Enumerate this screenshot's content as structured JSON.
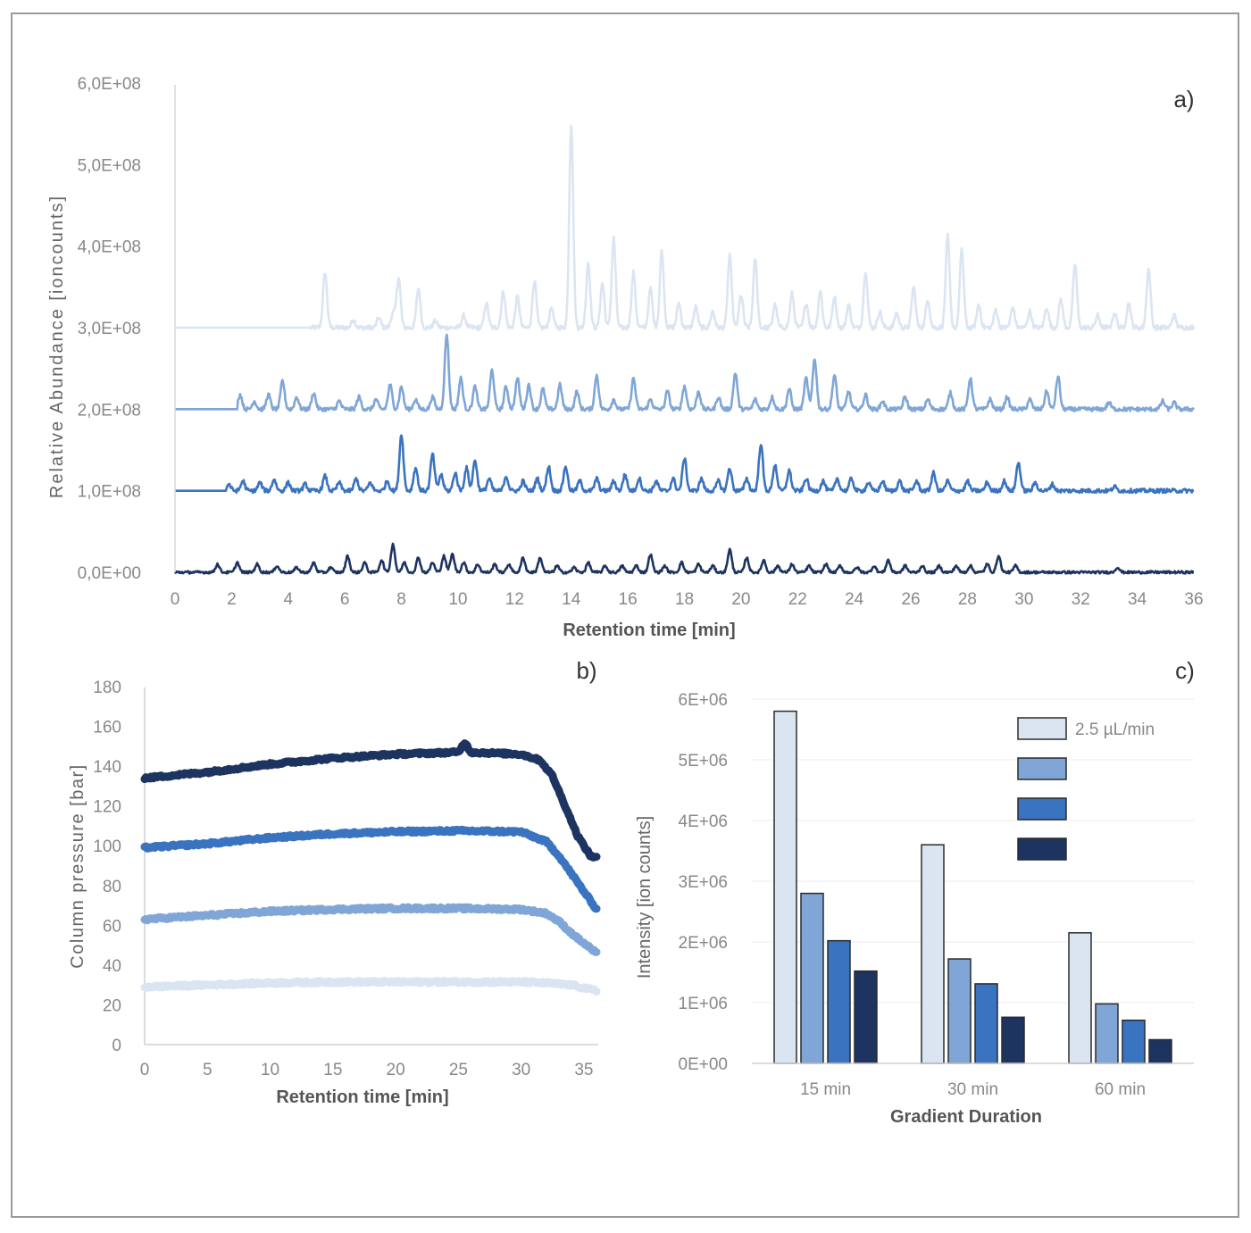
{
  "colors": {
    "c1": "#dbe5f2",
    "c2": "#7fa6d6",
    "c3": "#3a73bf",
    "c4": "#1d3461",
    "axis": "#d0d0d0",
    "bar_outline": "#2b2b2b"
  },
  "chart_data": [
    {
      "id": "a",
      "type": "line",
      "panel_label": "a)",
      "xlabel": "Retention time [min]",
      "ylabel": "Relative Abundance [ioncounts]",
      "xlim": [
        0,
        36
      ],
      "ylim": [
        0,
        600000000
      ],
      "x_ticks": [
        "0",
        "2",
        "4",
        "6",
        "8",
        "10",
        "12",
        "14",
        "16",
        "18",
        "20",
        "22",
        "24",
        "26",
        "28",
        "30",
        "32",
        "34",
        "36"
      ],
      "y_ticks": [
        "0,0E+00",
        "1,0E+08",
        "2,0E+08",
        "3,0E+08",
        "4,0E+08",
        "5,0E+08",
        "6,0E+08"
      ],
      "grid": false,
      "series": [
        {
          "color_key": "c1",
          "baseline": 300000000,
          "start": 4.8,
          "noise": 6000000,
          "peaks": [
            [
              5.3,
              68
            ],
            [
              6.3,
              10
            ],
            [
              7.2,
              12
            ],
            [
              7.7,
              18
            ],
            [
              7.9,
              62
            ],
            [
              8.6,
              48
            ],
            [
              9.2,
              8
            ],
            [
              10.2,
              15
            ],
            [
              11.0,
              30
            ],
            [
              11.6,
              45
            ],
            [
              12.1,
              38
            ],
            [
              12.7,
              58
            ],
            [
              13.3,
              25
            ],
            [
              14.0,
              250
            ],
            [
              14.6,
              80
            ],
            [
              15.1,
              55
            ],
            [
              15.5,
              110
            ],
            [
              16.2,
              68
            ],
            [
              16.8,
              48
            ],
            [
              17.2,
              95
            ],
            [
              17.8,
              30
            ],
            [
              18.4,
              25
            ],
            [
              19.0,
              20
            ],
            [
              19.6,
              88
            ],
            [
              20.0,
              40
            ],
            [
              20.5,
              85
            ],
            [
              21.2,
              28
            ],
            [
              21.8,
              42
            ],
            [
              22.3,
              30
            ],
            [
              22.8,
              45
            ],
            [
              23.3,
              38
            ],
            [
              23.8,
              28
            ],
            [
              24.4,
              70
            ],
            [
              24.9,
              20
            ],
            [
              25.5,
              18
            ],
            [
              26.1,
              50
            ],
            [
              26.6,
              35
            ],
            [
              27.3,
              112
            ],
            [
              27.8,
              95
            ],
            [
              28.4,
              28
            ],
            [
              29.0,
              22
            ],
            [
              29.6,
              25
            ],
            [
              30.2,
              20
            ],
            [
              30.8,
              25
            ],
            [
              31.3,
              35
            ],
            [
              31.8,
              78
            ],
            [
              32.6,
              15
            ],
            [
              33.2,
              18
            ],
            [
              33.7,
              30
            ],
            [
              34.4,
              72
            ],
            [
              35.3,
              15
            ]
          ]
        },
        {
          "color_key": "c2",
          "baseline": 200000000,
          "start": 2.2,
          "noise": 5000000,
          "peaks": [
            [
              2.3,
              18
            ],
            [
              2.8,
              10
            ],
            [
              3.3,
              18
            ],
            [
              3.8,
              35
            ],
            [
              4.3,
              15
            ],
            [
              4.9,
              20
            ],
            [
              5.8,
              10
            ],
            [
              6.5,
              15
            ],
            [
              7.1,
              12
            ],
            [
              7.6,
              30
            ],
            [
              8.0,
              28
            ],
            [
              8.5,
              12
            ],
            [
              9.1,
              15
            ],
            [
              9.6,
              92
            ],
            [
              10.1,
              38
            ],
            [
              10.6,
              28
            ],
            [
              11.2,
              48
            ],
            [
              11.7,
              28
            ],
            [
              12.1,
              38
            ],
            [
              12.5,
              30
            ],
            [
              13.0,
              25
            ],
            [
              13.6,
              30
            ],
            [
              14.2,
              22
            ],
            [
              14.9,
              42
            ],
            [
              15.5,
              12
            ],
            [
              16.2,
              38
            ],
            [
              16.8,
              12
            ],
            [
              17.4,
              22
            ],
            [
              18.0,
              28
            ],
            [
              18.5,
              22
            ],
            [
              19.2,
              15
            ],
            [
              19.8,
              45
            ],
            [
              20.5,
              12
            ],
            [
              21.1,
              15
            ],
            [
              21.7,
              25
            ],
            [
              22.3,
              38
            ],
            [
              22.6,
              62
            ],
            [
              23.3,
              42
            ],
            [
              23.8,
              22
            ],
            [
              24.4,
              18
            ],
            [
              25.0,
              10
            ],
            [
              25.8,
              15
            ],
            [
              26.6,
              12
            ],
            [
              27.4,
              20
            ],
            [
              28.1,
              38
            ],
            [
              28.8,
              12
            ],
            [
              29.4,
              15
            ],
            [
              30.2,
              12
            ],
            [
              30.8,
              22
            ],
            [
              31.2,
              40
            ],
            [
              33.0,
              8
            ],
            [
              34.9,
              10
            ],
            [
              35.3,
              8
            ]
          ]
        },
        {
          "color_key": "c3",
          "baseline": 100000000,
          "start": 1.8,
          "noise": 5000000,
          "peaks": [
            [
              1.9,
              8
            ],
            [
              2.4,
              12
            ],
            [
              3.0,
              10
            ],
            [
              3.5,
              14
            ],
            [
              4.0,
              10
            ],
            [
              4.6,
              8
            ],
            [
              5.3,
              18
            ],
            [
              5.8,
              10
            ],
            [
              6.4,
              15
            ],
            [
              6.9,
              10
            ],
            [
              7.5,
              12
            ],
            [
              8.0,
              70
            ],
            [
              8.5,
              28
            ],
            [
              9.1,
              45
            ],
            [
              9.4,
              20
            ],
            [
              9.9,
              22
            ],
            [
              10.3,
              28
            ],
            [
              10.6,
              38
            ],
            [
              11.1,
              15
            ],
            [
              11.7,
              18
            ],
            [
              12.3,
              12
            ],
            [
              12.8,
              15
            ],
            [
              13.2,
              30
            ],
            [
              13.8,
              30
            ],
            [
              14.3,
              12
            ],
            [
              14.9,
              15
            ],
            [
              15.5,
              12
            ],
            [
              15.9,
              20
            ],
            [
              16.4,
              15
            ],
            [
              17.0,
              12
            ],
            [
              17.6,
              15
            ],
            [
              18.0,
              40
            ],
            [
              18.6,
              15
            ],
            [
              19.2,
              12
            ],
            [
              19.6,
              28
            ],
            [
              20.2,
              15
            ],
            [
              20.7,
              58
            ],
            [
              21.2,
              32
            ],
            [
              21.7,
              25
            ],
            [
              22.3,
              15
            ],
            [
              22.9,
              12
            ],
            [
              23.4,
              15
            ],
            [
              23.9,
              15
            ],
            [
              24.5,
              10
            ],
            [
              25.0,
              12
            ],
            [
              25.6,
              12
            ],
            [
              26.2,
              12
            ],
            [
              26.8,
              22
            ],
            [
              27.3,
              12
            ],
            [
              28.0,
              12
            ],
            [
              28.7,
              10
            ],
            [
              29.3,
              12
            ],
            [
              29.8,
              35
            ],
            [
              30.4,
              10
            ],
            [
              31.0,
              8
            ],
            [
              33.2,
              5
            ]
          ]
        },
        {
          "color_key": "c4",
          "baseline": 0,
          "start": 0.0,
          "noise": 3000000,
          "peaks": [
            [
              1.5,
              10
            ],
            [
              2.2,
              12
            ],
            [
              2.9,
              10
            ],
            [
              3.6,
              8
            ],
            [
              4.3,
              6
            ],
            [
              4.9,
              12
            ],
            [
              5.5,
              6
            ],
            [
              6.1,
              20
            ],
            [
              6.7,
              12
            ],
            [
              7.3,
              15
            ],
            [
              7.7,
              35
            ],
            [
              8.1,
              12
            ],
            [
              8.6,
              18
            ],
            [
              9.1,
              12
            ],
            [
              9.5,
              20
            ],
            [
              9.8,
              22
            ],
            [
              10.2,
              12
            ],
            [
              10.7,
              10
            ],
            [
              11.3,
              10
            ],
            [
              11.8,
              10
            ],
            [
              12.3,
              18
            ],
            [
              12.9,
              18
            ],
            [
              13.5,
              8
            ],
            [
              14.1,
              6
            ],
            [
              14.6,
              12
            ],
            [
              15.2,
              8
            ],
            [
              15.8,
              8
            ],
            [
              16.3,
              8
            ],
            [
              16.8,
              22
            ],
            [
              17.3,
              8
            ],
            [
              17.9,
              12
            ],
            [
              18.5,
              10
            ],
            [
              19.0,
              8
            ],
            [
              19.6,
              28
            ],
            [
              20.2,
              18
            ],
            [
              20.8,
              15
            ],
            [
              21.3,
              8
            ],
            [
              21.8,
              10
            ],
            [
              22.4,
              8
            ],
            [
              23.0,
              10
            ],
            [
              23.5,
              8
            ],
            [
              24.1,
              6
            ],
            [
              24.7,
              8
            ],
            [
              25.2,
              15
            ],
            [
              25.8,
              8
            ],
            [
              26.4,
              8
            ],
            [
              27.0,
              8
            ],
            [
              27.6,
              8
            ],
            [
              28.1,
              8
            ],
            [
              28.7,
              10
            ],
            [
              29.1,
              20
            ],
            [
              29.7,
              8
            ],
            [
              33.3,
              6
            ]
          ]
        }
      ]
    },
    {
      "id": "b",
      "type": "line",
      "panel_label": "b)",
      "xlabel": "Retention time [min]",
      "ylabel": "Column pressure [bar]",
      "xlim": [
        0,
        36
      ],
      "ylim": [
        0,
        180
      ],
      "x_ticks": [
        "0",
        "5",
        "10",
        "15",
        "20",
        "25",
        "30",
        "35"
      ],
      "y_ticks": [
        "0",
        "20",
        "40",
        "60",
        "80",
        "100",
        "120",
        "140",
        "160",
        "180"
      ],
      "grid": false,
      "series": [
        {
          "color_key": "c1",
          "x": [
            0,
            5,
            10,
            15,
            20,
            25,
            30,
            32,
            34,
            36
          ],
          "y": [
            29,
            30,
            31,
            31.5,
            31.5,
            31.5,
            31.5,
            31,
            30,
            27
          ]
        },
        {
          "color_key": "c2",
          "x": [
            0,
            5,
            10,
            15,
            20,
            25,
            30,
            32,
            33,
            34,
            35,
            36
          ],
          "y": [
            63,
            65,
            67,
            68,
            68.5,
            68.5,
            68,
            66,
            62,
            56,
            51,
            46
          ]
        },
        {
          "color_key": "c3",
          "x": [
            0,
            5,
            10,
            15,
            20,
            25,
            30,
            32,
            33,
            34,
            35,
            36
          ],
          "y": [
            99,
            101,
            104,
            106,
            107,
            107.5,
            107,
            102,
            95,
            86,
            77,
            68
          ]
        },
        {
          "color_key": "c4",
          "x": [
            0,
            5,
            10,
            15,
            20,
            25,
            25.5,
            26,
            30,
            31.5,
            32.5,
            33.5,
            34.5,
            35.5,
            36
          ],
          "y": [
            134,
            137,
            141,
            144,
            146,
            147,
            152,
            147,
            146,
            143,
            135,
            120,
            105,
            95,
            94
          ]
        }
      ]
    },
    {
      "id": "c",
      "type": "bar",
      "panel_label": "c)",
      "xlabel": "Gradient Duration",
      "ylabel": "Intensity [ion counts]",
      "ylim": [
        0,
        6000000
      ],
      "y_ticks": [
        "0E+00",
        "1E+06",
        "2E+06",
        "3E+06",
        "4E+06",
        "5E+06",
        "6E+06"
      ],
      "categories": [
        "15 min",
        "30 min",
        "60 min"
      ],
      "grid": true,
      "legend_position": "top-right",
      "series": [
        {
          "name": "2.5 µL/min",
          "color_key": "c1",
          "values": [
            5800000,
            3600000,
            2150000
          ]
        },
        {
          "name": "",
          "color_key": "c2",
          "values": [
            2800000,
            1720000,
            980000
          ]
        },
        {
          "name": "",
          "color_key": "c3",
          "values": [
            2020000,
            1310000,
            710000
          ]
        },
        {
          "name": "",
          "color_key": "c4",
          "values": [
            1520000,
            760000,
            390000
          ]
        }
      ]
    }
  ]
}
